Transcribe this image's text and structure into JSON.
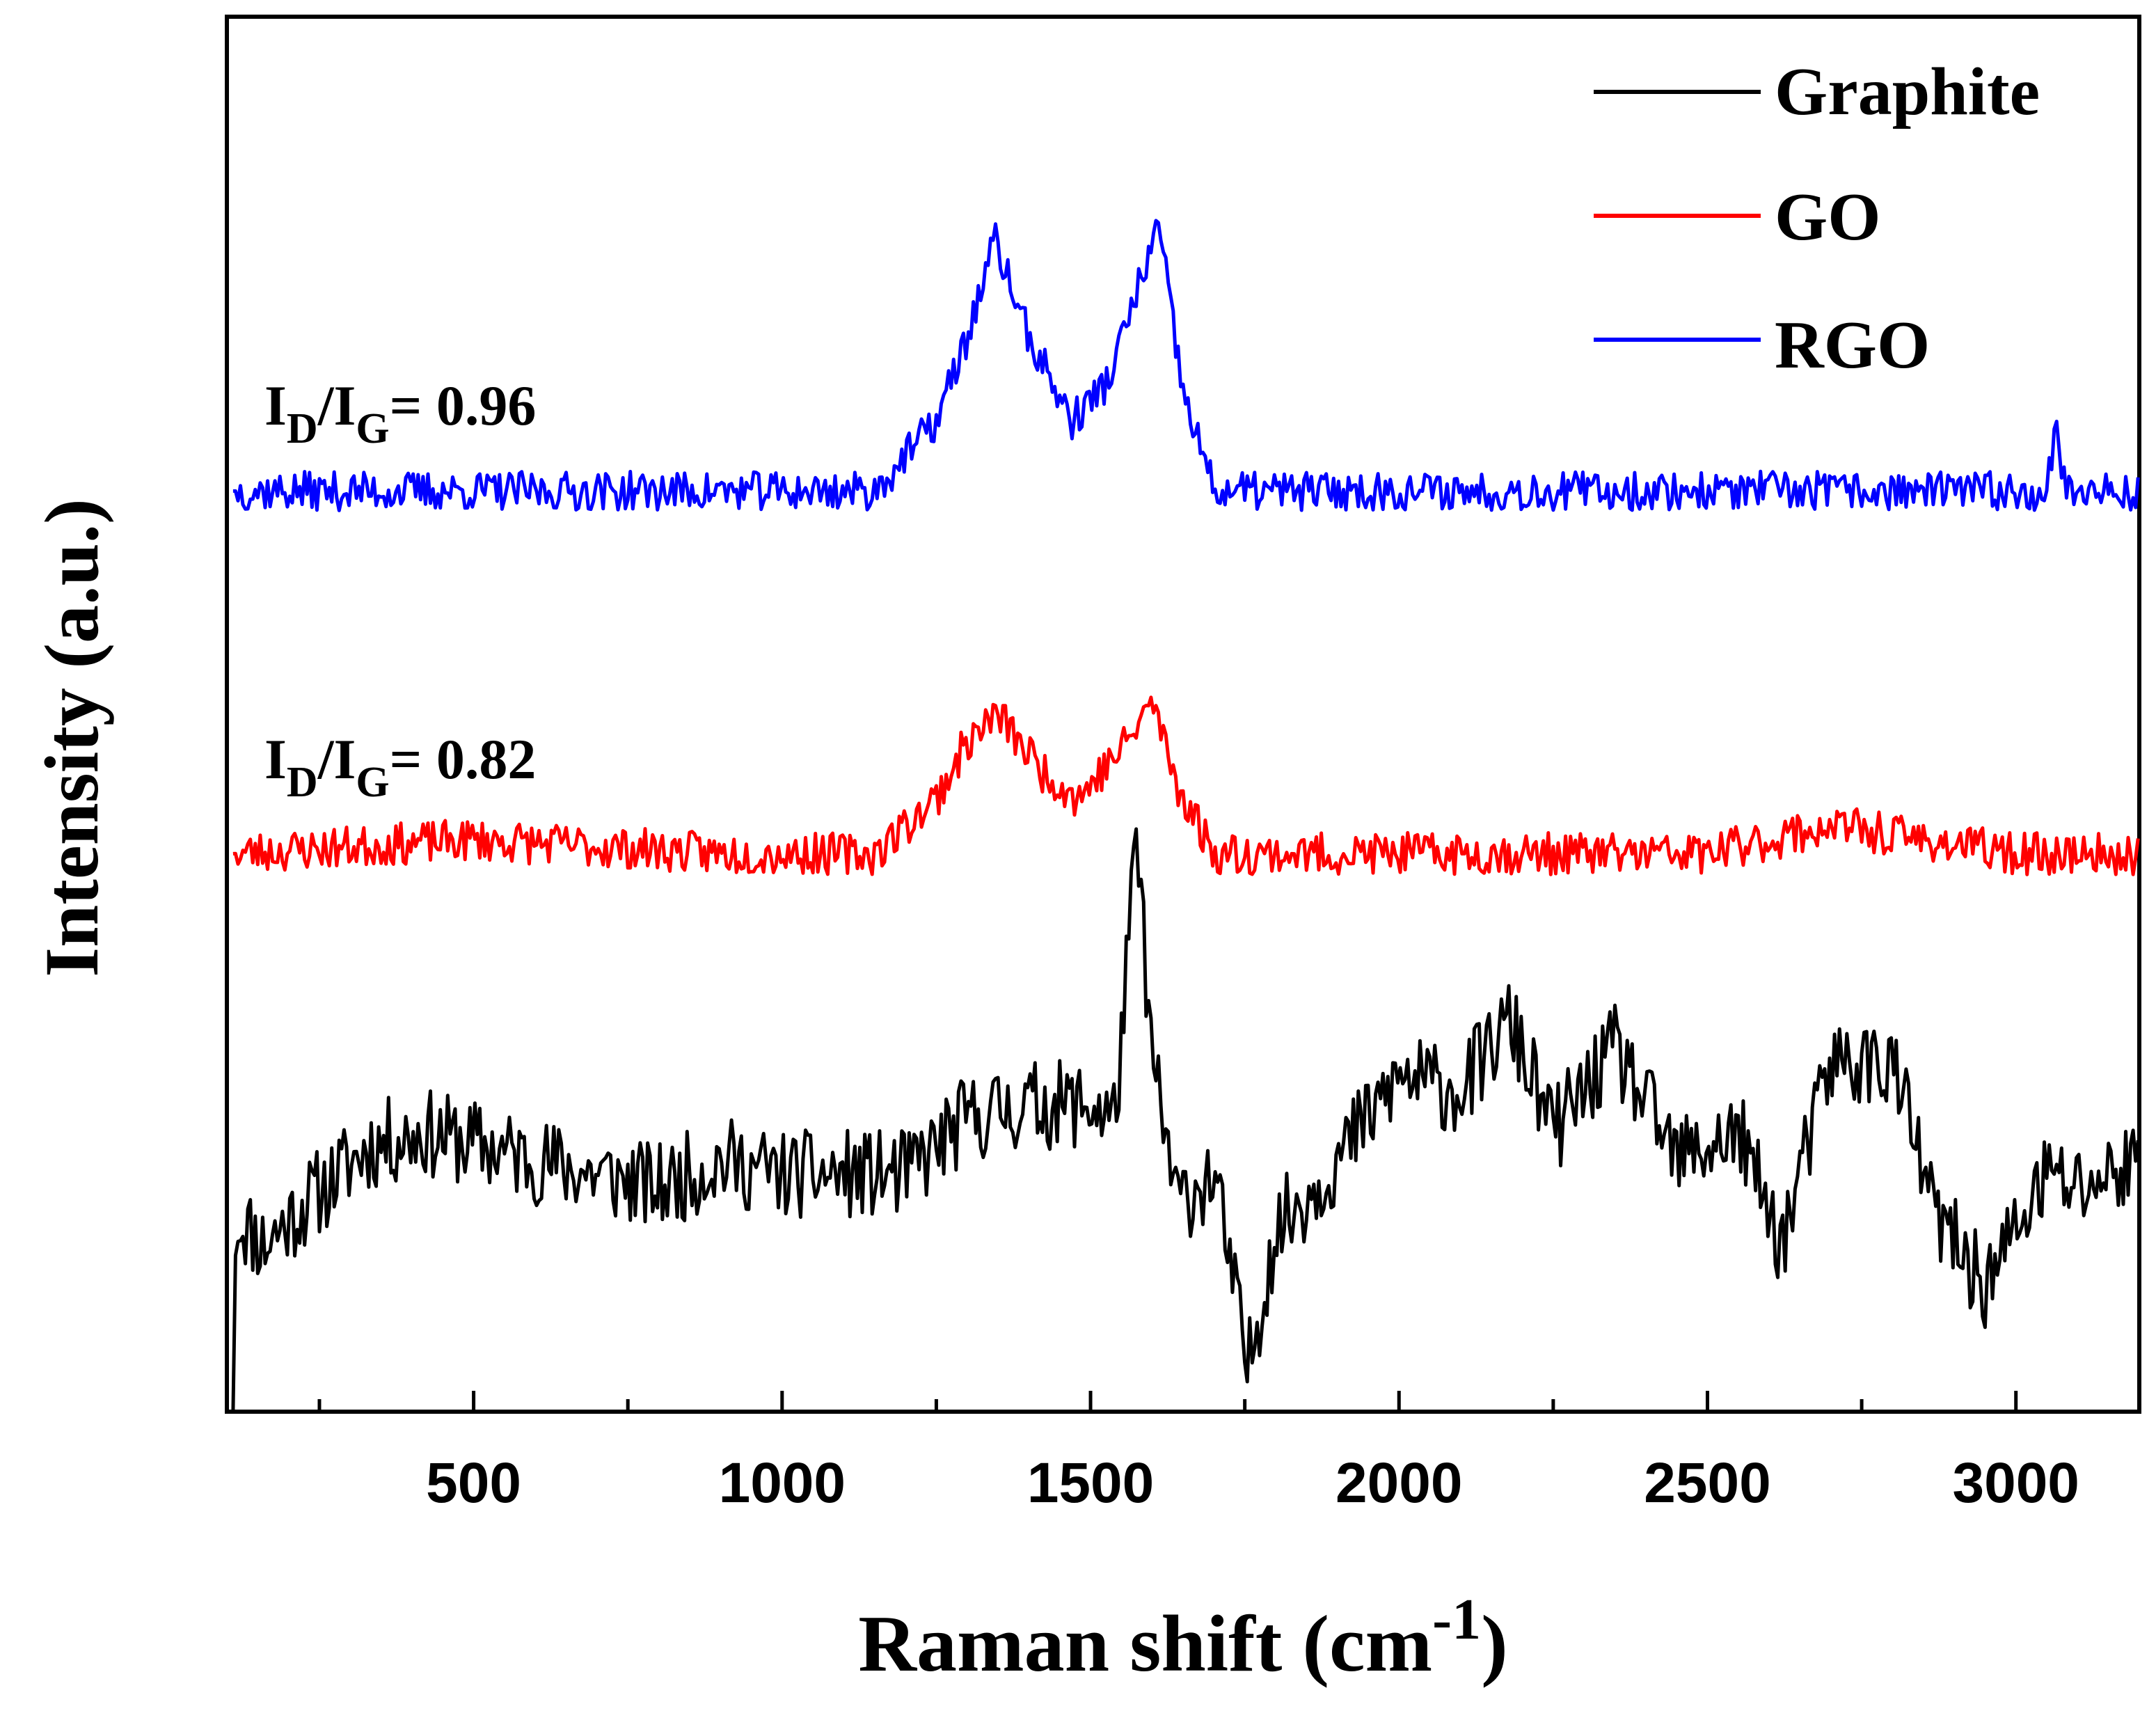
{
  "chart_data": {
    "type": "line",
    "xlabel": "Raman shift (cm",
    "xlabel_sup": "-1",
    "xlabel_close": ")",
    "ylabel": "Intensity (a.u.)",
    "xlim": [
      100,
      3200
    ],
    "y_units": "arbitrary (stacked, offset)",
    "ylim": [
      0,
      100
    ],
    "x_ticks": [
      "500",
      "1000",
      "1500",
      "2000",
      "2500",
      "3000"
    ],
    "x_tick_values": [
      500,
      1000,
      1500,
      2000,
      2500,
      3000
    ],
    "y_ticks": "none",
    "grid": false,
    "legend_position": "top-right",
    "legend": [
      "Graphite",
      "GO",
      "RGO"
    ],
    "annotations": [
      {
        "series": "RGO",
        "text": "I_D/I_G= 0.96",
        "main1": "I",
        "sub1": "D",
        "slash": "/I",
        "sub2": "G",
        "rest": "= 0.96"
      },
      {
        "series": "GO",
        "text": "I_D/I_G= 0.82",
        "main1": "I",
        "sub1": "D",
        "slash": "/I",
        "sub2": "G",
        "rest": "= 0.82"
      }
    ],
    "series": [
      {
        "name": "Graphite",
        "color": "#000000",
        "baseline": 14,
        "noise": 3.2,
        "seed": 11,
        "points": [
          [
            110,
            0
          ],
          [
            115,
            14
          ],
          [
            160,
            12
          ],
          [
            230,
            15
          ],
          [
            330,
            19
          ],
          [
            420,
            20
          ],
          [
            520,
            19
          ],
          [
            600,
            18
          ],
          [
            700,
            17
          ],
          [
            800,
            16
          ],
          [
            900,
            18
          ],
          [
            1000,
            17
          ],
          [
            1100,
            17
          ],
          [
            1200,
            17
          ],
          [
            1300,
            21
          ],
          [
            1400,
            22
          ],
          [
            1500,
            22
          ],
          [
            1540,
            21
          ],
          [
            1575,
            41
          ],
          [
            1600,
            25
          ],
          [
            1640,
            15
          ],
          [
            1700,
            17
          ],
          [
            1755,
            3
          ],
          [
            1800,
            13
          ],
          [
            1900,
            18
          ],
          [
            2000,
            24
          ],
          [
            2100,
            23
          ],
          [
            2180,
            28
          ],
          [
            2250,
            20
          ],
          [
            2350,
            26
          ],
          [
            2450,
            18
          ],
          [
            2550,
            20
          ],
          [
            2620,
            12
          ],
          [
            2700,
            25
          ],
          [
            2800,
            25
          ],
          [
            2870,
            14
          ],
          [
            2950,
            9
          ],
          [
            3050,
            17
          ],
          [
            3100,
            16
          ],
          [
            3200,
            18
          ]
        ]
      },
      {
        "name": "GO",
        "color": "#ff0000",
        "baseline": 40,
        "noise": 1.5,
        "seed": 23,
        "points": [
          [
            110,
            40
          ],
          [
            500,
            41
          ],
          [
            900,
            40
          ],
          [
            1150,
            40
          ],
          [
            1250,
            44
          ],
          [
            1300,
            48
          ],
          [
            1350,
            50
          ],
          [
            1420,
            46
          ],
          [
            1480,
            44
          ],
          [
            1560,
            48
          ],
          [
            1600,
            51
          ],
          [
            1640,
            45
          ],
          [
            1700,
            40
          ],
          [
            2000,
            40
          ],
          [
            2500,
            40
          ],
          [
            2700,
            42
          ],
          [
            3000,
            40
          ],
          [
            3200,
            40
          ]
        ]
      },
      {
        "name": "RGO",
        "color": "#0000ff",
        "baseline": 66,
        "noise": 1.4,
        "seed": 37,
        "points": [
          [
            110,
            66
          ],
          [
            900,
            66
          ],
          [
            1150,
            66
          ],
          [
            1250,
            71
          ],
          [
            1300,
            77
          ],
          [
            1345,
            84
          ],
          [
            1400,
            77
          ],
          [
            1470,
            71
          ],
          [
            1530,
            74
          ],
          [
            1610,
            85
          ],
          [
            1650,
            73
          ],
          [
            1700,
            66
          ],
          [
            2000,
            66
          ],
          [
            2500,
            66
          ],
          [
            3050,
            66
          ],
          [
            3065,
            71
          ],
          [
            3080,
            66
          ],
          [
            3200,
            66
          ]
        ]
      }
    ]
  }
}
